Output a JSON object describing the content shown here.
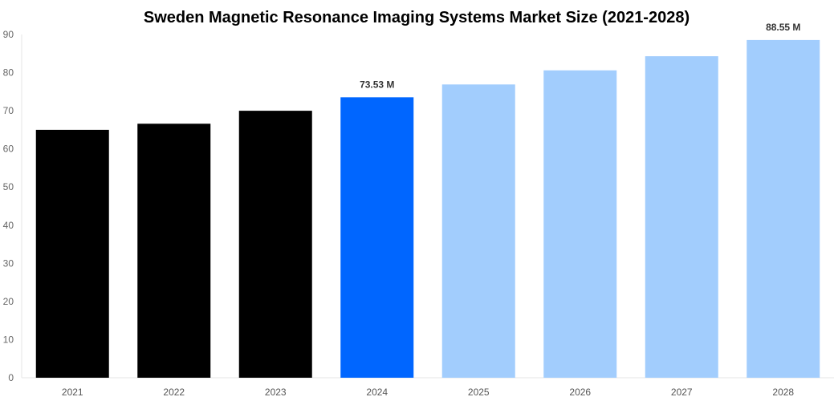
{
  "chart_data": {
    "type": "bar",
    "title": "Sweden Magnetic Resonance Imaging Systems Market Size (2021-2028)",
    "categories": [
      "2021",
      "2022",
      "2023",
      "2024",
      "2025",
      "2026",
      "2027",
      "2028"
    ],
    "values": [
      65.0,
      66.6,
      70.0,
      73.53,
      76.9,
      80.6,
      84.3,
      88.55
    ],
    "colors": [
      "#000000",
      "#000000",
      "#000000",
      "#0066ff",
      "#a2cdfd",
      "#a2cdfd",
      "#a2cdfd",
      "#a2cdfd"
    ],
    "data_labels": {
      "3": "73.53 M",
      "7": "88.55 M"
    },
    "ylim": [
      0,
      90
    ],
    "yticks": [
      0,
      10,
      20,
      30,
      40,
      50,
      60,
      70,
      80,
      90
    ],
    "xlabel": "",
    "ylabel": "",
    "grid": false
  }
}
